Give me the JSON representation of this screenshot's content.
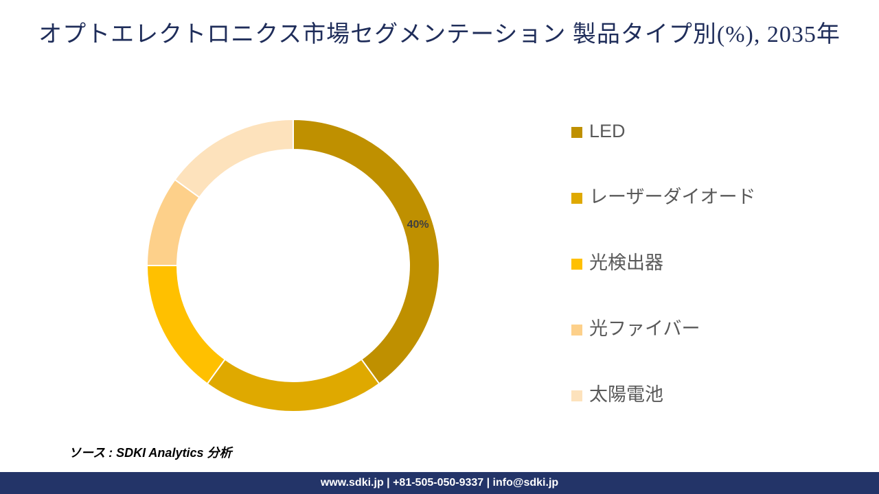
{
  "chart_data": {
    "type": "donut",
    "title": "オプトエレクトロニクス市場セグメンテーション 製品タイプ別(%), 2035年",
    "categories": [
      "LED",
      "レーザーダイオード",
      "光検出器",
      "光ファイバー",
      "太陽電池"
    ],
    "values": [
      40,
      20,
      15,
      10,
      15
    ],
    "value_labels": [
      "40%",
      null,
      null,
      null,
      null
    ],
    "colors": [
      "#bf9000",
      "#dfa900",
      "#ffc000",
      "#fdd08a",
      "#fde2bc"
    ],
    "legend": "right"
  },
  "source": "ソース : SDKI Analytics 分析",
  "footer": "www.sdki.jp | +81-505-050-9337 | info@sdki.jp"
}
